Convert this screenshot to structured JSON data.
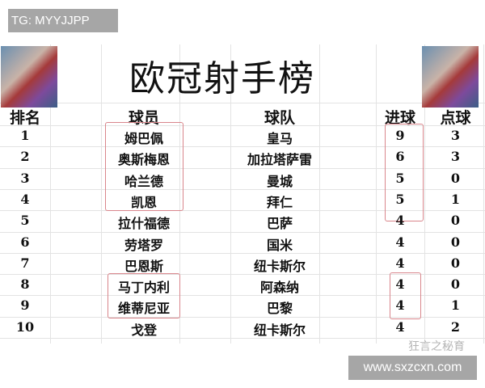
{
  "tag": "TG: MYYJJPP",
  "site": "www.sxzcxn.com",
  "title": "欧冠射手榜",
  "watermark": "狂言之秘育",
  "headers": {
    "rank": "排名",
    "player": "球员",
    "team": "球队",
    "goals": "进球",
    "penalties": "点球"
  },
  "rows": [
    {
      "rank": "1",
      "player": "姆巴佩",
      "team": "皇马",
      "goals": "9",
      "penalties": "3"
    },
    {
      "rank": "2",
      "player": "奥斯梅恩",
      "team": "加拉塔萨雷",
      "goals": "6",
      "penalties": "3"
    },
    {
      "rank": "3",
      "player": "哈兰德",
      "team": "曼城",
      "goals": "5",
      "penalties": "0"
    },
    {
      "rank": "4",
      "player": "凯恩",
      "team": "拜仁",
      "goals": "5",
      "penalties": "1"
    },
    {
      "rank": "5",
      "player": "拉什福德",
      "team": "巴萨",
      "goals": "4",
      "penalties": "0"
    },
    {
      "rank": "6",
      "player": "劳塔罗",
      "team": "国米",
      "goals": "4",
      "penalties": "0"
    },
    {
      "rank": "7",
      "player": "巴恩斯",
      "team": "纽卡斯尔",
      "goals": "4",
      "penalties": "0"
    },
    {
      "rank": "8",
      "player": "马丁内利",
      "team": "阿森纳",
      "goals": "4",
      "penalties": "0"
    },
    {
      "rank": "9",
      "player": "维蒂尼亚",
      "team": "巴黎",
      "goals": "4",
      "penalties": "1"
    },
    {
      "rank": "10",
      "player": "戈登",
      "team": "纽卡斯尔",
      "goals": "4",
      "penalties": "2"
    }
  ],
  "highlight_color": "#d9868c"
}
